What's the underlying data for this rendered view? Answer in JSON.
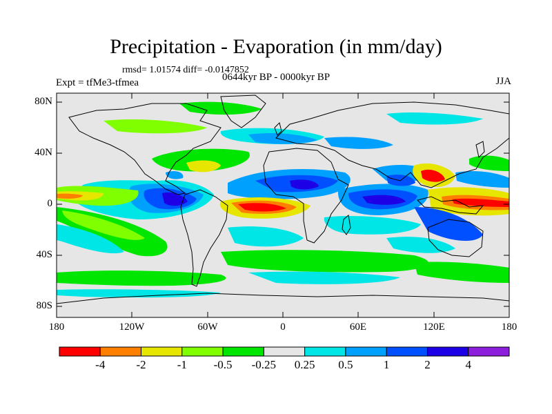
{
  "title": "Precipitation - Evaporation (in mm/day)",
  "stats": "rmsd= 1.01574 diff= -0.0147852",
  "experiment": "Expt = tfMe3-tfmea",
  "period": "0644kyr BP - 0000kyr BP",
  "season": "JJA",
  "axes": {
    "lat_ticks": [
      "80N",
      "40N",
      "0",
      "40S",
      "80S"
    ],
    "lon_ticks": [
      "180",
      "120W",
      "60W",
      "0",
      "60E",
      "120E",
      "180"
    ]
  },
  "colorbar": {
    "labels": [
      "-4",
      "-2",
      "-1",
      "-0.5",
      "-0.25",
      "0.25",
      "0.5",
      "1",
      "2",
      "4"
    ],
    "colors": [
      "#ff0000",
      "#ff8000",
      "#e6e600",
      "#80ff00",
      "#00e600",
      "#e6e6e6",
      "#00e6e6",
      "#00a0ff",
      "#0050ff",
      "#1e00e6",
      "#8c1edc"
    ]
  },
  "map_colors": {
    "background": "#e6e6e6",
    "coastline": "#000000"
  }
}
